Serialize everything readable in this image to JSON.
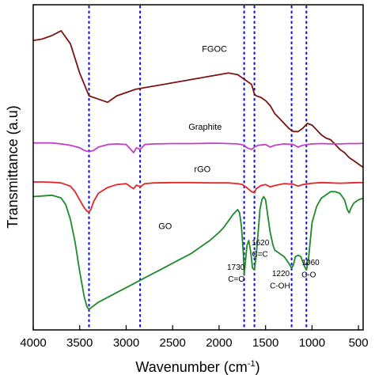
{
  "chart_data": {
    "type": "line",
    "xlabel": "Wavenumber (cm",
    "xlabel_sup": "-1",
    "xlabel_close": ")",
    "ylabel": "Transmittance (a.u)",
    "xlim": [
      4000,
      450
    ],
    "x_reversed": true,
    "y_tick_labels": false,
    "x_ticks": [
      4000,
      3500,
      3000,
      2500,
      2000,
      1500,
      1000,
      500
    ],
    "x_tick_labels": [
      "4000",
      "3500",
      "3000",
      "2500",
      "2000",
      "1500",
      "1000",
      "500"
    ],
    "reference_lines": [
      3400,
      2850,
      1730,
      1620,
      1220,
      1060
    ],
    "reference_line_color": "#1a1ad0",
    "series": [
      {
        "name": "FGOC",
        "color": "#7b1414",
        "points": [
          [
            4000,
            0.11
          ],
          [
            3900,
            0.105
          ],
          [
            3800,
            0.095
          ],
          [
            3700,
            0.08
          ],
          [
            3600,
            0.12
          ],
          [
            3500,
            0.21
          ],
          [
            3400,
            0.28
          ],
          [
            3300,
            0.29
          ],
          [
            3200,
            0.3
          ],
          [
            3100,
            0.28
          ],
          [
            3000,
            0.27
          ],
          [
            2900,
            0.26
          ],
          [
            2800,
            0.255
          ],
          [
            2700,
            0.25
          ],
          [
            2600,
            0.245
          ],
          [
            2500,
            0.24
          ],
          [
            2400,
            0.235
          ],
          [
            2300,
            0.23
          ],
          [
            2200,
            0.225
          ],
          [
            2100,
            0.22
          ],
          [
            2000,
            0.215
          ],
          [
            1900,
            0.21
          ],
          [
            1800,
            0.215
          ],
          [
            1750,
            0.225
          ],
          [
            1700,
            0.235
          ],
          [
            1650,
            0.245
          ],
          [
            1620,
            0.275
          ],
          [
            1600,
            0.28
          ],
          [
            1550,
            0.285
          ],
          [
            1500,
            0.295
          ],
          [
            1450,
            0.31
          ],
          [
            1400,
            0.335
          ],
          [
            1350,
            0.35
          ],
          [
            1300,
            0.365
          ],
          [
            1250,
            0.38
          ],
          [
            1200,
            0.39
          ],
          [
            1150,
            0.39
          ],
          [
            1100,
            0.38
          ],
          [
            1050,
            0.365
          ],
          [
            1000,
            0.37
          ],
          [
            950,
            0.385
          ],
          [
            900,
            0.4
          ],
          [
            850,
            0.41
          ],
          [
            800,
            0.415
          ],
          [
            750,
            0.43
          ],
          [
            700,
            0.445
          ],
          [
            650,
            0.455
          ],
          [
            600,
            0.47
          ],
          [
            550,
            0.48
          ],
          [
            500,
            0.49
          ],
          [
            450,
            0.5
          ]
        ]
      },
      {
        "name": "Graphite",
        "color": "#c43fc4",
        "points": [
          [
            4000,
            0.425
          ],
          [
            3900,
            0.425
          ],
          [
            3800,
            0.425
          ],
          [
            3700,
            0.428
          ],
          [
            3600,
            0.432
          ],
          [
            3500,
            0.44
          ],
          [
            3450,
            0.448
          ],
          [
            3400,
            0.452
          ],
          [
            3350,
            0.448
          ],
          [
            3300,
            0.438
          ],
          [
            3200,
            0.43
          ],
          [
            3100,
            0.428
          ],
          [
            3000,
            0.43
          ],
          [
            2950,
            0.445
          ],
          [
            2920,
            0.455
          ],
          [
            2890,
            0.44
          ],
          [
            2850,
            0.445
          ],
          [
            2800,
            0.43
          ],
          [
            2700,
            0.428
          ],
          [
            2500,
            0.427
          ],
          [
            2300,
            0.427
          ],
          [
            2100,
            0.426
          ],
          [
            2000,
            0.426
          ],
          [
            1900,
            0.427
          ],
          [
            1800,
            0.428
          ],
          [
            1730,
            0.432
          ],
          [
            1700,
            0.44
          ],
          [
            1650,
            0.445
          ],
          [
            1620,
            0.438
          ],
          [
            1580,
            0.432
          ],
          [
            1500,
            0.43
          ],
          [
            1450,
            0.438
          ],
          [
            1400,
            0.432
          ],
          [
            1300,
            0.428
          ],
          [
            1200,
            0.43
          ],
          [
            1150,
            0.438
          ],
          [
            1100,
            0.432
          ],
          [
            1000,
            0.428
          ],
          [
            900,
            0.427
          ],
          [
            800,
            0.428
          ],
          [
            700,
            0.428
          ],
          [
            600,
            0.427
          ],
          [
            500,
            0.427
          ],
          [
            450,
            0.426
          ]
        ]
      },
      {
        "name": "rGO",
        "color": "#e5252a",
        "points": [
          [
            4000,
            0.545
          ],
          [
            3900,
            0.545
          ],
          [
            3800,
            0.546
          ],
          [
            3700,
            0.548
          ],
          [
            3600,
            0.558
          ],
          [
            3550,
            0.575
          ],
          [
            3500,
            0.6
          ],
          [
            3450,
            0.625
          ],
          [
            3420,
            0.635
          ],
          [
            3400,
            0.637
          ],
          [
            3380,
            0.63
          ],
          [
            3350,
            0.605
          ],
          [
            3300,
            0.58
          ],
          [
            3200,
            0.562
          ],
          [
            3100,
            0.553
          ],
          [
            3000,
            0.55
          ],
          [
            2950,
            0.56
          ],
          [
            2920,
            0.566
          ],
          [
            2890,
            0.555
          ],
          [
            2850,
            0.56
          ],
          [
            2800,
            0.55
          ],
          [
            2700,
            0.548
          ],
          [
            2500,
            0.547
          ],
          [
            2300,
            0.547
          ],
          [
            2100,
            0.548
          ],
          [
            2000,
            0.548
          ],
          [
            1900,
            0.548
          ],
          [
            1800,
            0.55
          ],
          [
            1750,
            0.553
          ],
          [
            1700,
            0.563
          ],
          [
            1650,
            0.575
          ],
          [
            1620,
            0.578
          ],
          [
            1600,
            0.566
          ],
          [
            1550,
            0.556
          ],
          [
            1500,
            0.553
          ],
          [
            1450,
            0.56
          ],
          [
            1400,
            0.556
          ],
          [
            1300,
            0.55
          ],
          [
            1200,
            0.552
          ],
          [
            1150,
            0.558
          ],
          [
            1100,
            0.553
          ],
          [
            1000,
            0.549
          ],
          [
            900,
            0.547
          ],
          [
            800,
            0.548
          ],
          [
            700,
            0.549
          ],
          [
            600,
            0.548
          ],
          [
            500,
            0.547
          ],
          [
            450,
            0.547
          ]
        ]
      },
      {
        "name": "GO",
        "color": "#1f8a2a",
        "points": [
          [
            4000,
            0.59
          ],
          [
            3900,
            0.588
          ],
          [
            3800,
            0.586
          ],
          [
            3700,
            0.594
          ],
          [
            3650,
            0.615
          ],
          [
            3600,
            0.66
          ],
          [
            3550,
            0.73
          ],
          [
            3500,
            0.82
          ],
          [
            3450,
            0.9
          ],
          [
            3420,
            0.93
          ],
          [
            3400,
            0.937
          ],
          [
            3370,
            0.93
          ],
          [
            3300,
            0.915
          ],
          [
            3200,
            0.9
          ],
          [
            3100,
            0.885
          ],
          [
            3000,
            0.87
          ],
          [
            2900,
            0.855
          ],
          [
            2800,
            0.84
          ],
          [
            2700,
            0.825
          ],
          [
            2600,
            0.81
          ],
          [
            2500,
            0.795
          ],
          [
            2400,
            0.78
          ],
          [
            2300,
            0.765
          ],
          [
            2200,
            0.745
          ],
          [
            2100,
            0.725
          ],
          [
            2000,
            0.7
          ],
          [
            1950,
            0.685
          ],
          [
            1900,
            0.665
          ],
          [
            1850,
            0.645
          ],
          [
            1800,
            0.63
          ],
          [
            1780,
            0.64
          ],
          [
            1760,
            0.68
          ],
          [
            1740,
            0.76
          ],
          [
            1730,
            0.83
          ],
          [
            1720,
            0.8
          ],
          [
            1700,
            0.74
          ],
          [
            1680,
            0.725
          ],
          [
            1660,
            0.76
          ],
          [
            1640,
            0.81
          ],
          [
            1620,
            0.815
          ],
          [
            1600,
            0.77
          ],
          [
            1580,
            0.7
          ],
          [
            1560,
            0.63
          ],
          [
            1540,
            0.6
          ],
          [
            1520,
            0.59
          ],
          [
            1500,
            0.6
          ],
          [
            1480,
            0.64
          ],
          [
            1450,
            0.7
          ],
          [
            1420,
            0.74
          ],
          [
            1400,
            0.755
          ],
          [
            1350,
            0.765
          ],
          [
            1300,
            0.775
          ],
          [
            1250,
            0.795
          ],
          [
            1220,
            0.81
          ],
          [
            1200,
            0.8
          ],
          [
            1180,
            0.775
          ],
          [
            1150,
            0.77
          ],
          [
            1120,
            0.775
          ],
          [
            1100,
            0.79
          ],
          [
            1080,
            0.805
          ],
          [
            1060,
            0.815
          ],
          [
            1040,
            0.79
          ],
          [
            1020,
            0.73
          ],
          [
            1000,
            0.67
          ],
          [
            950,
            0.62
          ],
          [
            900,
            0.595
          ],
          [
            850,
            0.585
          ],
          [
            800,
            0.575
          ],
          [
            750,
            0.575
          ],
          [
            700,
            0.58
          ],
          [
            650,
            0.6
          ],
          [
            620,
            0.63
          ],
          [
            600,
            0.64
          ],
          [
            580,
            0.625
          ],
          [
            550,
            0.61
          ],
          [
            500,
            0.6
          ],
          [
            450,
            0.595
          ]
        ]
      }
    ],
    "series_labels": [
      {
        "text": "FGOC",
        "x": 2050,
        "y": 0.145
      },
      {
        "text": "Graphite",
        "x": 2150,
        "y": 0.385
      },
      {
        "text": "rGO",
        "x": 2180,
        "y": 0.515
      },
      {
        "text": "GO",
        "x": 2580,
        "y": 0.69
      }
    ],
    "annotations": [
      {
        "text": "1730",
        "x": 1820,
        "y": 0.815
      },
      {
        "text": "C=O",
        "x": 1815,
        "y": 0.852
      },
      {
        "text": "1620",
        "x": 1555,
        "y": 0.74
      },
      {
        "text": "C=C",
        "x": 1560,
        "y": 0.775
      },
      {
        "text": "1220",
        "x": 1335,
        "y": 0.835
      },
      {
        "text": "C-OH",
        "x": 1345,
        "y": 0.872
      },
      {
        "text": "1060",
        "x": 1015,
        "y": 0.8
      },
      {
        "text": "C-O",
        "x": 1035,
        "y": 0.838
      }
    ]
  }
}
